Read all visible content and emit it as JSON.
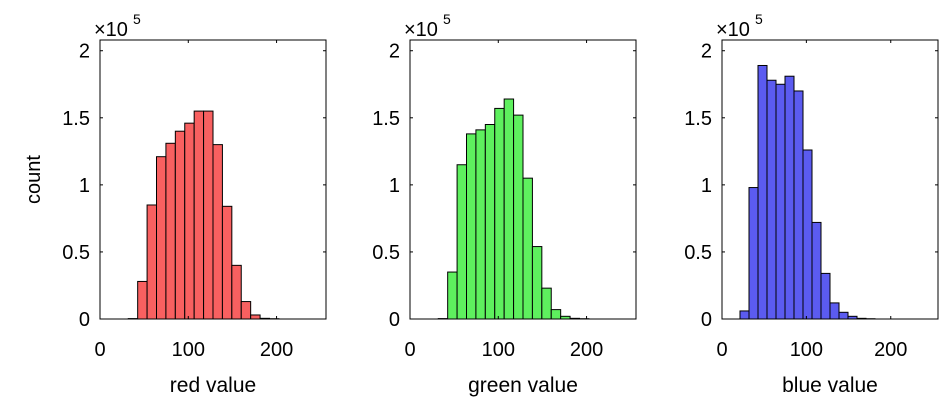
{
  "shared": {
    "ylabel": "count",
    "y_multiplier_prefix": "×10",
    "y_multiplier_exponent": "5",
    "x_ticks": [
      0,
      100,
      200
    ],
    "y_ticks": [
      0,
      0.5,
      1,
      1.5,
      2
    ],
    "y_tick_labels": [
      "0",
      "0.5",
      "1",
      "1.5",
      "2"
    ],
    "bin_width": 10.67
  },
  "chart_data": [
    {
      "type": "bar",
      "name": "red",
      "xlabel": "red value",
      "xlim": [
        0,
        256
      ],
      "ylim": [
        0,
        2.08
      ],
      "y_unit_scale": 100000,
      "grid": false,
      "bar_color": "#f86060",
      "bin_edges": [
        0,
        10.67,
        21.33,
        32,
        42.67,
        53.33,
        64,
        74.67,
        85.33,
        96,
        106.67,
        117.33,
        128,
        138.67,
        149.33,
        160,
        170.67,
        181.33,
        192,
        202.67,
        213.33,
        224,
        234.67,
        245.33,
        256
      ],
      "values": [
        0,
        0,
        0,
        0.003,
        0.28,
        0.85,
        1.21,
        1.31,
        1.4,
        1.46,
        1.55,
        1.55,
        1.3,
        0.84,
        0.4,
        0.13,
        0.03,
        0.005,
        0.002,
        0,
        0,
        0,
        0,
        0
      ]
    },
    {
      "type": "bar",
      "name": "green",
      "xlabel": "green value",
      "xlim": [
        0,
        256
      ],
      "ylim": [
        0,
        2.08
      ],
      "y_unit_scale": 100000,
      "grid": false,
      "bar_color": "#5ef05e",
      "bin_edges": [
        0,
        10.67,
        21.33,
        32,
        42.67,
        53.33,
        64,
        74.67,
        85.33,
        96,
        106.67,
        117.33,
        128,
        138.67,
        149.33,
        160,
        170.67,
        181.33,
        192,
        202.67,
        213.33,
        224,
        234.67,
        245.33,
        256
      ],
      "values": [
        0,
        0,
        0,
        0.003,
        0.35,
        1.15,
        1.38,
        1.41,
        1.45,
        1.57,
        1.64,
        1.52,
        1.05,
        0.54,
        0.23,
        0.07,
        0.02,
        0.005,
        0.002,
        0,
        0,
        0,
        0,
        0
      ]
    },
    {
      "type": "bar",
      "name": "blue",
      "xlabel": "blue value",
      "xlim": [
        0,
        256
      ],
      "ylim": [
        0,
        2.08
      ],
      "y_unit_scale": 100000,
      "grid": false,
      "bar_color": "#5b5bf0",
      "bin_edges": [
        0,
        10.67,
        21.33,
        32,
        42.67,
        53.33,
        64,
        74.67,
        85.33,
        96,
        106.67,
        117.33,
        128,
        138.67,
        149.33,
        160,
        170.67,
        181.33,
        192,
        202.67,
        213.33,
        224,
        234.67,
        245.33,
        256
      ],
      "values": [
        0,
        0,
        0.06,
        0.98,
        1.89,
        1.78,
        1.75,
        1.81,
        1.7,
        1.26,
        0.72,
        0.34,
        0.12,
        0.05,
        0.02,
        0.005,
        0.002,
        0,
        0,
        0,
        0,
        0,
        0,
        0
      ]
    }
  ]
}
